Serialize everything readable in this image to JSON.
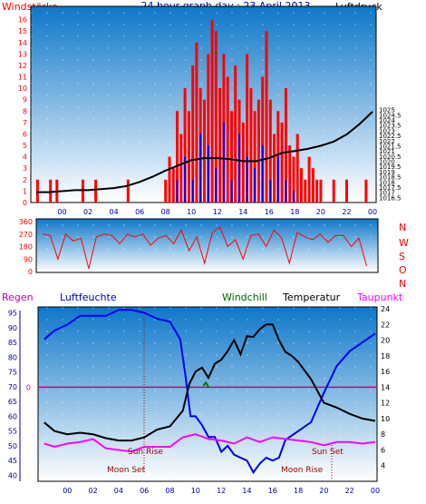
{
  "colors": {
    "bg": "#ffffff",
    "panel_top": "#0d77c9",
    "panel_bottom": "#ffffff",
    "grid": "#ffffff",
    "wind_avg": "#ff0000",
    "wind_gust": "#0000ff",
    "pressure": "#000000",
    "direction": "#ff0000",
    "humidity": "#0000ee",
    "temperature": "#000000",
    "dewpoint": "#ff00ff",
    "windchill": "#007700",
    "zero_line": "#cc0077",
    "red_label": "#ff0000",
    "blue_label": "#000099",
    "event_line": "#990000"
  },
  "header": {
    "left": "Windstärke",
    "title": "24 hour graph day : 23 April 2013",
    "right": "Luftdruck"
  },
  "middle": {
    "compass": [
      "N",
      "W",
      "S",
      "O",
      "N"
    ]
  },
  "legend": {
    "regen": "Regen",
    "luftfeuchte": "Luftfeuchte",
    "windchill": "Windchill",
    "temperatur": "Temperatur",
    "taupunkt": "Taupunkt"
  },
  "events": {
    "sun_rise": "Sun Rise",
    "sun_set": "Sun Set",
    "moon_set": "Moon Set",
    "moon_rise": "Moon Rise"
  },
  "chart_data": [
    {
      "type": "bar",
      "title": "24 hour graph day : 23 April 2013",
      "xlabel": "",
      "ylabel": "Windstärke",
      "y2label": "Luftdruck",
      "xlim": [
        -2,
        24
      ],
      "ylim": [
        0,
        17
      ],
      "y2lim": [
        1016,
        1035
      ],
      "x_ticks": [
        "00",
        "02",
        "04",
        "06",
        "08",
        "10",
        "12",
        "14",
        "16",
        "18",
        "20",
        "22",
        "00"
      ],
      "y_ticks": [
        "0",
        "1",
        "2",
        "3",
        "4",
        "5",
        "6",
        "7",
        "8",
        "9",
        "10",
        "11",
        "12",
        "13",
        "14",
        "15",
        "16"
      ],
      "y2_ticks": [
        "1016",
        "1016.5",
        "1017",
        "1017.5",
        "1018",
        "1018.5",
        "1019",
        "1019.5",
        "1020",
        "1020.5",
        "1021",
        "1021.5",
        "1022",
        "1022.5",
        "1023",
        "1023.5",
        "1024",
        "1024.5",
        "1025",
        "1025.5",
        "1026",
        "1026.5",
        "1027",
        "1027.5",
        "1028",
        "1028.5",
        "1029",
        "1029.5",
        "1030",
        "1030.5",
        "1031",
        "1031.5",
        "1032",
        "1032.5",
        "1033",
        "1033.5",
        "1034",
        "1034.5",
        "1035"
      ],
      "y2_tick_labels": [
        "1016.5",
        "1017",
        "1017.5",
        "1018",
        "1018.5",
        "1019",
        "1019.5",
        "1020",
        "1020.5",
        "1021",
        "1021.5",
        "1022",
        "1022.5",
        "1023",
        "1023.5",
        "1024",
        "1024.5",
        "1025"
      ],
      "grid": true,
      "series": [
        {
          "name": "Windstärke",
          "x": [
            -1.9,
            -1.4,
            -0.9,
            -0.4,
            0.1,
            0.6,
            1.1,
            1.6,
            2.1,
            2.6,
            3.1,
            3.6,
            4.1,
            4.6,
            5.1,
            5.6,
            6.1,
            6.6,
            7.1,
            7.6,
            8.0,
            8.3,
            8.6,
            8.9,
            9.2,
            9.5,
            9.8,
            10.1,
            10.4,
            10.7,
            11.0,
            11.3,
            11.6,
            11.9,
            12.2,
            12.5,
            12.8,
            13.1,
            13.4,
            13.7,
            14.0,
            14.3,
            14.6,
            14.9,
            15.2,
            15.5,
            15.8,
            16.1,
            16.4,
            16.7,
            17.0,
            17.3,
            17.6,
            17.9,
            18.2,
            18.5,
            18.8,
            19.1,
            19.4,
            19.7,
            20.0,
            20.5,
            21.0,
            21.5,
            22.0,
            22.5,
            23.0,
            23.5
          ],
          "values": [
            2,
            0,
            2,
            2,
            0,
            0,
            0,
            2,
            0,
            2,
            0,
            0,
            0,
            0,
            2,
            0,
            0,
            0,
            0,
            0,
            2,
            4,
            3,
            8,
            6,
            10,
            8,
            12,
            14,
            10,
            9,
            13,
            16,
            15,
            10,
            13,
            11,
            8,
            12,
            9,
            7,
            13,
            10,
            8,
            9,
            11,
            15,
            9,
            6,
            8,
            7,
            10,
            5,
            4,
            6,
            3,
            2,
            4,
            3,
            2,
            2,
            0,
            2,
            0,
            2,
            0,
            0,
            2
          ]
        },
        {
          "name": "Böen",
          "x": [
            8.9,
            9.5,
            10.1,
            10.7,
            11.3,
            11.9,
            12.5,
            13.1,
            13.7,
            14.3,
            14.9,
            15.5,
            16.1,
            16.7,
            17.3,
            17.9
          ],
          "values": [
            2,
            4,
            2,
            6,
            5,
            3,
            7,
            2,
            6,
            4,
            3,
            5,
            2,
            4,
            2,
            1
          ]
        },
        {
          "name": "Luftdruck",
          "x": [
            -2,
            -1,
            0,
            1,
            2,
            3,
            4,
            5,
            6,
            7,
            8,
            9,
            10,
            11,
            12,
            13,
            14,
            15,
            16,
            17,
            18,
            19,
            20,
            21,
            22,
            23,
            24
          ],
          "values": [
            1017.0,
            1017.0,
            1017.1,
            1017.2,
            1017.2,
            1017.3,
            1017.4,
            1017.6,
            1018.0,
            1018.5,
            1019.1,
            1019.6,
            1020.1,
            1020.3,
            1020.3,
            1020.2,
            1020.0,
            1020.0,
            1020.3,
            1020.8,
            1021.0,
            1021.2,
            1021.5,
            1021.9,
            1022.6,
            1023.6,
            1024.8
          ]
        }
      ]
    },
    {
      "type": "line",
      "title": "",
      "xlabel": "",
      "ylabel": "",
      "xlim": [
        -2,
        24
      ],
      "ylim": [
        0,
        360
      ],
      "y_ticks": [
        "0",
        "90",
        "180",
        "270",
        "360"
      ],
      "grid": true,
      "series": [
        {
          "name": "",
          "x": [
            -1.8,
            -1.2,
            -0.6,
            0.0,
            0.6,
            1.2,
            1.8,
            2.4,
            3.0,
            3.6,
            4.2,
            4.8,
            5.4,
            6.0,
            6.6,
            7.2,
            7.8,
            8.4,
            9.0,
            9.6,
            10.2,
            10.8,
            11.4,
            12.0,
            12.6,
            13.2,
            13.8,
            14.4,
            15.0,
            15.6,
            16.2,
            16.8,
            17.4,
            18.0,
            18.6,
            19.2,
            19.8,
            20.4,
            21.0,
            21.6,
            22.2,
            22.8,
            23.4
          ],
          "values": [
            270,
            260,
            90,
            270,
            220,
            240,
            20,
            250,
            270,
            260,
            200,
            270,
            250,
            270,
            190,
            240,
            260,
            200,
            300,
            150,
            250,
            60,
            280,
            320,
            180,
            230,
            90,
            260,
            270,
            180,
            300,
            240,
            60,
            280,
            250,
            230,
            270,
            210,
            260,
            260,
            180,
            240,
            40
          ]
        }
      ]
    },
    {
      "type": "line",
      "title": "",
      "xlabel": "",
      "ylabel": "Luftfeuchte",
      "y2label": "Temperatur",
      "xlim": [
        -2,
        24
      ],
      "ylim": [
        38,
        97
      ],
      "y2lim": [
        2,
        24
      ],
      "y_ticks": [
        "40",
        "45",
        "50",
        "55",
        "60",
        "65",
        "70",
        "75",
        "80",
        "85",
        "90",
        "95"
      ],
      "y2_ticks": [
        "4",
        "6",
        "8",
        "10",
        "12",
        "14",
        "16",
        "18",
        "20",
        "22",
        "24"
      ],
      "regen_ticks": [
        "0"
      ],
      "grid": true,
      "series": [
        {
          "name": "Luftfeuchte",
          "x": [
            -1.8,
            -1,
            0,
            1,
            2,
            3,
            4,
            5,
            6,
            7,
            8,
            8.8,
            9.2,
            9.6,
            10,
            10.5,
            11,
            11.5,
            12,
            12.5,
            13,
            13.5,
            14,
            14.5,
            15,
            15.5,
            16,
            16.5,
            17,
            18,
            19,
            20,
            21,
            22,
            23,
            24
          ],
          "values": [
            86,
            89,
            91,
            94,
            94,
            94,
            96,
            96,
            95,
            93,
            92,
            86,
            74,
            60,
            60,
            57,
            53,
            53,
            48,
            50,
            47,
            46,
            45,
            41,
            44,
            46,
            45,
            46,
            52,
            55,
            58,
            68,
            77,
            82,
            85,
            88
          ]
        },
        {
          "name": "Temperatur",
          "x": [
            -1.8,
            -1,
            0,
            1,
            2,
            3,
            4,
            5,
            6,
            7,
            8,
            9,
            9.5,
            10,
            10.5,
            11,
            11.5,
            12,
            12.5,
            13,
            13.5,
            14,
            14.5,
            15,
            15.5,
            16,
            16.5,
            17,
            17.5,
            18,
            19,
            20,
            21,
            22,
            23,
            24
          ],
          "values": [
            9.5,
            8.4,
            8.0,
            8.2,
            8.0,
            7.5,
            7.2,
            7.2,
            7.6,
            8.6,
            9.0,
            11.0,
            14.4,
            16.0,
            16.5,
            15.2,
            17.0,
            17.5,
            18.6,
            20.0,
            18.2,
            20.5,
            20.4,
            21.4,
            22.0,
            22.0,
            20.0,
            18.5,
            18.0,
            17.2,
            15.0,
            12.0,
            11.4,
            10.6,
            10.0,
            9.7
          ]
        },
        {
          "name": "Taupunkt",
          "x": [
            -1.8,
            -1,
            0,
            1,
            2,
            3,
            4,
            5,
            6,
            7,
            8,
            9,
            10,
            11,
            12,
            13,
            14,
            15,
            16,
            17,
            18,
            19,
            20,
            21,
            22,
            23,
            24
          ],
          "values": [
            6.8,
            6.4,
            6.8,
            7.0,
            7.4,
            6.2,
            6.0,
            5.8,
            6.4,
            6.4,
            6.4,
            7.6,
            8.0,
            7.4,
            7.2,
            6.8,
            7.6,
            7.0,
            7.6,
            7.4,
            7.2,
            7.0,
            6.6,
            7.0,
            7.0,
            6.8,
            7.0
          ]
        },
        {
          "name": "Windchill",
          "x": [
            10.6,
            10.8,
            11.0
          ],
          "values": [
            14.2,
            14.6,
            14.0
          ]
        }
      ]
    }
  ]
}
